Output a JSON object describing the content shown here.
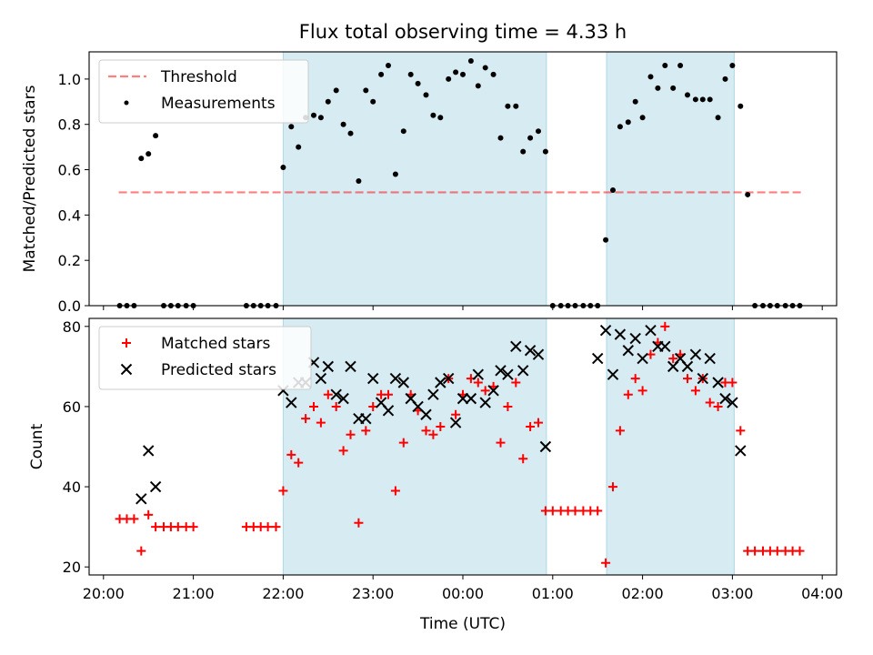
{
  "title": "Flux total observing time = 4.33 h",
  "x_axis": {
    "label": "Time (UTC)",
    "tick_labels": [
      "20:00",
      "21:00",
      "22:00",
      "23:00",
      "00:00",
      "01:00",
      "02:00",
      "03:00",
      "04:00"
    ]
  },
  "colors": {
    "band": "#add8e6",
    "threshold": "#ff0000",
    "measurements": "#000000",
    "matched": "#ff0000",
    "predicted": "#000000"
  },
  "chart_data": [
    {
      "type": "scatter",
      "ylabel": "Matched/Predicted stars",
      "xlim": [
        -0.16,
        8.16
      ],
      "ylim": [
        0,
        1.12
      ],
      "y_tick_labels": [
        "0.0",
        "0.2",
        "0.4",
        "0.6",
        "0.8",
        "1.0"
      ],
      "x_tick_labels_visible": false,
      "legend": {
        "placement": "top-left",
        "entries": [
          "Threshold",
          "Measurements"
        ]
      },
      "shaded_intervals": [
        [
          2.0,
          4.93
        ],
        [
          5.6,
          7.02
        ]
      ],
      "threshold": {
        "name": "Threshold",
        "y": 0.5,
        "x_range": [
          0.17,
          7.78
        ],
        "style": "dashed"
      },
      "series": [
        {
          "name": "Measurements",
          "marker": "dot",
          "x": [
            0.18,
            0.26,
            0.34,
            0.42,
            0.5,
            0.58,
            0.67,
            0.75,
            0.83,
            0.92,
            1.0,
            1.59,
            1.67,
            1.75,
            1.83,
            1.92,
            2.0,
            2.09,
            2.17,
            2.25,
            2.34,
            2.42,
            2.5,
            2.59,
            2.67,
            2.75,
            2.84,
            2.92,
            3.0,
            3.09,
            3.17,
            3.25,
            3.34,
            3.42,
            3.5,
            3.59,
            3.67,
            3.75,
            3.84,
            3.92,
            4.0,
            4.09,
            4.17,
            4.25,
            4.34,
            4.42,
            4.5,
            4.59,
            4.67,
            4.75,
            4.84,
            4.92,
            5.0,
            5.09,
            5.17,
            5.25,
            5.34,
            5.42,
            5.5,
            5.59,
            5.67,
            5.75,
            5.84,
            5.92,
            6.0,
            6.09,
            6.17,
            6.25,
            6.34,
            6.42,
            6.5,
            6.59,
            6.67,
            6.75,
            6.84,
            6.92,
            7.0,
            7.09,
            7.17,
            7.25,
            7.34,
            7.42,
            7.5,
            7.59,
            7.67,
            7.75
          ],
          "y": [
            0,
            0,
            0,
            0.65,
            0.67,
            0.75,
            0,
            0,
            0,
            0,
            0,
            0,
            0,
            0,
            0,
            0,
            0.61,
            0.79,
            0.7,
            0.83,
            0.84,
            0.83,
            0.9,
            0.95,
            0.8,
            0.76,
            0.55,
            0.95,
            0.9,
            1.02,
            1.06,
            0.58,
            0.77,
            1.02,
            0.98,
            0.93,
            0.84,
            0.83,
            1.0,
            1.03,
            1.02,
            1.08,
            0.97,
            1.05,
            1.02,
            0.74,
            0.88,
            0.88,
            0.68,
            0.74,
            0.77,
            0.68,
            0,
            0,
            0,
            0,
            0,
            0,
            0,
            0.29,
            0.51,
            0.79,
            0.81,
            0.9,
            0.83,
            1.01,
            0.96,
            1.06,
            0.96,
            1.06,
            0.93,
            0.91,
            0.91,
            0.91,
            0.83,
            1.0,
            1.06,
            0.88,
            0.49,
            0,
            0,
            0,
            0,
            0,
            0,
            0
          ]
        }
      ]
    },
    {
      "type": "scatter",
      "ylabel": "Count",
      "xlim": [
        -0.16,
        8.16
      ],
      "ylim": [
        18,
        82
      ],
      "y_tick_labels": [
        "20",
        "40",
        "60",
        "80"
      ],
      "legend": {
        "placement": "top-left",
        "entries": [
          "Matched stars",
          "Predicted stars"
        ]
      },
      "shaded_intervals": [
        [
          2.0,
          4.93
        ],
        [
          5.6,
          7.02
        ]
      ],
      "series": [
        {
          "name": "Matched stars",
          "marker": "plus",
          "x": [
            0.18,
            0.26,
            0.34,
            0.42,
            0.5,
            0.58,
            0.67,
            0.75,
            0.83,
            0.92,
            1.0,
            1.59,
            1.67,
            1.75,
            1.83,
            1.92,
            2.0,
            2.09,
            2.17,
            2.25,
            2.34,
            2.42,
            2.5,
            2.59,
            2.67,
            2.75,
            2.84,
            2.92,
            3.0,
            3.09,
            3.17,
            3.25,
            3.34,
            3.42,
            3.5,
            3.59,
            3.67,
            3.75,
            3.84,
            3.92,
            4.0,
            4.09,
            4.17,
            4.25,
            4.34,
            4.42,
            4.5,
            4.59,
            4.67,
            4.75,
            4.84,
            4.92,
            5.0,
            5.09,
            5.17,
            5.25,
            5.34,
            5.42,
            5.5,
            5.59,
            5.67,
            5.75,
            5.84,
            5.92,
            6.0,
            6.09,
            6.17,
            6.25,
            6.34,
            6.42,
            6.5,
            6.59,
            6.67,
            6.75,
            6.84,
            6.92,
            7.0,
            7.09,
            7.17,
            7.25,
            7.34,
            7.42,
            7.5,
            7.59,
            7.67,
            7.75
          ],
          "y": [
            32,
            32,
            32,
            24,
            33,
            30,
            30,
            30,
            30,
            30,
            30,
            30,
            30,
            30,
            30,
            30,
            39,
            48,
            46,
            57,
            60,
            56,
            63,
            60,
            49,
            53,
            31,
            54,
            60,
            63,
            63,
            39,
            51,
            63,
            59,
            54,
            53,
            55,
            67,
            58,
            63,
            67,
            66,
            64,
            65,
            51,
            60,
            66,
            47,
            55,
            56,
            34,
            34,
            34,
            34,
            34,
            34,
            34,
            34,
            21,
            40,
            54,
            63,
            67,
            64,
            73,
            76,
            80,
            72,
            73,
            67,
            64,
            67,
            61,
            60,
            66,
            66,
            54,
            24,
            24,
            24,
            24,
            24,
            24,
            24,
            24
          ]
        },
        {
          "name": "Predicted stars",
          "marker": "x",
          "x": [
            0.42,
            0.5,
            0.58,
            2.0,
            2.09,
            2.17,
            2.25,
            2.34,
            2.42,
            2.5,
            2.59,
            2.67,
            2.75,
            2.84,
            2.92,
            3.0,
            3.09,
            3.17,
            3.25,
            3.34,
            3.42,
            3.5,
            3.59,
            3.67,
            3.75,
            3.84,
            3.92,
            4.0,
            4.09,
            4.17,
            4.25,
            4.34,
            4.42,
            4.5,
            4.59,
            4.67,
            4.75,
            4.84,
            4.92,
            5.5,
            5.59,
            5.67,
            5.75,
            5.84,
            5.92,
            6.0,
            6.09,
            6.17,
            6.25,
            6.34,
            6.42,
            6.5,
            6.59,
            6.67,
            6.75,
            6.84,
            6.92,
            7.0,
            7.09
          ],
          "y": [
            37,
            49,
            40,
            64,
            61,
            66,
            66,
            71,
            67,
            70,
            63,
            62,
            70,
            57,
            57,
            67,
            61,
            59,
            67,
            66,
            62,
            60,
            58,
            63,
            66,
            67,
            56,
            62,
            62,
            68,
            61,
            64,
            69,
            68,
            75,
            69,
            74,
            73,
            50,
            72,
            79,
            68,
            78,
            74,
            77,
            72,
            79,
            75,
            75,
            70,
            72,
            70,
            73,
            67,
            72,
            66,
            62,
            61,
            49
          ]
        }
      ]
    }
  ]
}
